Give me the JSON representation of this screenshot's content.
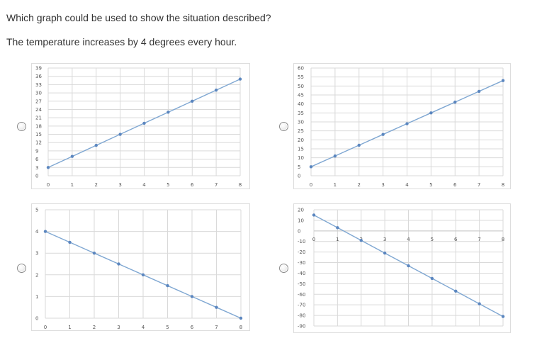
{
  "question": {
    "prompt": "Which graph could be used to show the situation described?",
    "situation": "The temperature increases by 4 degrees every hour."
  },
  "colors": {
    "line": "#7fa7d2",
    "point": "#5b86bf",
    "grid": "#d9d9d9",
    "frame": "#dddddd"
  },
  "chart_data": [
    {
      "type": "line",
      "position": "top-left",
      "x": [
        0,
        1,
        2,
        3,
        4,
        5,
        6,
        7,
        8
      ],
      "values": [
        3,
        7,
        11,
        15,
        19,
        23,
        27,
        31,
        35
      ],
      "xlim": [
        0,
        8
      ],
      "ylim": [
        0,
        39
      ],
      "xticks": [
        "0",
        "1",
        "2",
        "3",
        "4",
        "5",
        "6",
        "7",
        "8"
      ],
      "yticks": [
        "0",
        "3",
        "6",
        "9",
        "12",
        "15",
        "18",
        "21",
        "24",
        "27",
        "30",
        "33",
        "36",
        "39"
      ],
      "grid": true,
      "legend": "none"
    },
    {
      "type": "line",
      "position": "top-right",
      "x": [
        0,
        1,
        2,
        3,
        4,
        5,
        6,
        7,
        8
      ],
      "values": [
        5,
        11,
        17,
        23,
        29,
        35,
        41,
        47,
        53
      ],
      "xlim": [
        0,
        8
      ],
      "ylim": [
        0,
        60
      ],
      "xticks": [
        "0",
        "1",
        "2",
        "3",
        "4",
        "5",
        "6",
        "7",
        "8"
      ],
      "yticks": [
        "0",
        "5",
        "10",
        "15",
        "20",
        "25",
        "30",
        "35",
        "40",
        "45",
        "50",
        "55",
        "60"
      ],
      "grid": true,
      "legend": "none"
    },
    {
      "type": "line",
      "position": "bottom-left",
      "x": [
        0,
        1,
        2,
        3,
        4,
        5,
        6,
        7,
        8
      ],
      "values": [
        4,
        3.5,
        3,
        2.5,
        2,
        1.5,
        1,
        0.5,
        0
      ],
      "xlim": [
        0,
        8
      ],
      "ylim": [
        0,
        5
      ],
      "xticks": [
        "0",
        "1",
        "2",
        "3",
        "4",
        "5",
        "6",
        "7",
        "8"
      ],
      "yticks": [
        "0",
        "1",
        "2",
        "3",
        "4",
        "5"
      ],
      "grid": true,
      "legend": "none"
    },
    {
      "type": "line",
      "position": "bottom-right",
      "x": [
        0,
        1,
        2,
        3,
        4,
        5,
        6,
        7,
        8
      ],
      "values": [
        15,
        3,
        -9,
        -21,
        -33,
        -45,
        -57,
        -69,
        -81
      ],
      "xlim": [
        0,
        8
      ],
      "ylim": [
        -90,
        20
      ],
      "xaxis_at": 0,
      "xticks": [
        "0",
        "1",
        "2",
        "3",
        "4",
        "5",
        "6",
        "7",
        "8"
      ],
      "yticks": [
        "20",
        "10",
        "0",
        "-10",
        "-20",
        "-30",
        "-40",
        "-50",
        "-60",
        "-70",
        "-80",
        "-90"
      ],
      "grid": true,
      "legend": "none"
    }
  ]
}
